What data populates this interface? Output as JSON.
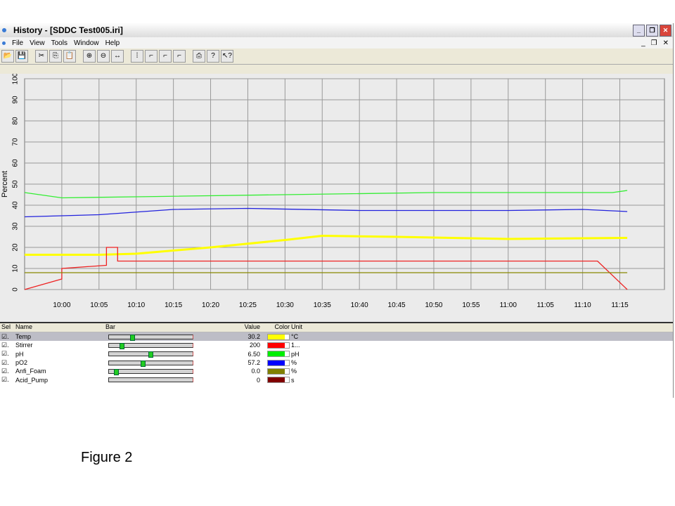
{
  "window": {
    "title": "History - [SDDC Test005.iri]"
  },
  "menu": [
    "File",
    "View",
    "Tools",
    "Window",
    "Help"
  ],
  "toolbar": [
    "open-icon",
    "save-icon",
    "cut-icon",
    "copy-icon",
    "paste-icon",
    "zoom-in-icon",
    "zoom-out-icon",
    "fit-icon",
    "marker-icon",
    "cursor-icon",
    "cursor2-icon",
    "cursor3-icon",
    "print-icon",
    "help-icon",
    "context-help-icon"
  ],
  "chart_data": {
    "type": "line",
    "ylabel": "Percent",
    "ylim": [
      0,
      100
    ],
    "yticks": [
      "0",
      "10",
      "20",
      "30",
      "40",
      "50",
      "60",
      "70",
      "80",
      "90",
      "100"
    ],
    "xlim": [
      "9:55",
      "11:21"
    ],
    "xticks": [
      "10:00",
      "10:05",
      "10:10",
      "10:15",
      "10:20",
      "10:25",
      "10:30",
      "10:35",
      "10:40",
      "10:45",
      "10:50",
      "10:55",
      "11:00",
      "11:05",
      "11:10",
      "11:15"
    ],
    "grid": true,
    "series": [
      {
        "color": "#33ee33",
        "x": [
          "9:55",
          "10:00",
          "10:10",
          "10:30",
          "10:50",
          "11:14",
          "11:16"
        ],
        "y": [
          46,
          43.5,
          44,
          45,
          46,
          46,
          47
        ]
      },
      {
        "color": "#2222dd",
        "x": [
          "9:55",
          "10:05",
          "10:15",
          "10:25",
          "10:40",
          "11:00",
          "11:10",
          "11:16"
        ],
        "y": [
          34.5,
          35.5,
          38,
          38.5,
          37.5,
          37.5,
          38,
          37
        ]
      },
      {
        "color": "#ffff00",
        "x": [
          "9:55",
          "10:05",
          "10:10",
          "10:20",
          "10:30",
          "10:35",
          "10:45",
          "11:00",
          "11:16"
        ],
        "y": [
          16.5,
          16.5,
          17,
          20,
          23.5,
          25.5,
          25,
          24,
          24.5
        ]
      },
      {
        "color": "#ee2222",
        "x": [
          "9:55",
          "10:00",
          "10:00",
          "10:06",
          "10:06",
          "10:07.5",
          "10:07.5",
          "11:12",
          "11:16"
        ],
        "y": [
          0,
          5,
          10,
          11.5,
          20,
          20,
          13.5,
          13.5,
          0
        ]
      },
      {
        "color": "#888800",
        "x": [
          "9:55",
          "11:16"
        ],
        "y": [
          8,
          8
        ]
      }
    ]
  },
  "table": {
    "headers": [
      "Sel",
      "Name",
      "Bar",
      "Value",
      "Color",
      "Unit"
    ],
    "rows": [
      {
        "name": "Temp",
        "value": "30.2",
        "color": "#ffff00",
        "unit": "°C",
        "level": 0.25,
        "selected": true
      },
      {
        "name": "Stirrer",
        "value": "200",
        "color": "#ff0000",
        "unit": "1...",
        "level": 0.13
      },
      {
        "name": "pH",
        "value": "6.50",
        "color": "#00ee00",
        "unit": "pH",
        "level": 0.47
      },
      {
        "name": "pO2",
        "value": "57.2",
        "color": "#0000ff",
        "unit": "%",
        "level": 0.38
      },
      {
        "name": "Anfi_Foam",
        "value": "0.0",
        "color": "#808000",
        "unit": "%",
        "level": 0.06
      },
      {
        "name": "Acid_Pump",
        "value": "0",
        "color": "#800000",
        "unit": "s",
        "level": null
      }
    ]
  },
  "caption": "Figure 2"
}
